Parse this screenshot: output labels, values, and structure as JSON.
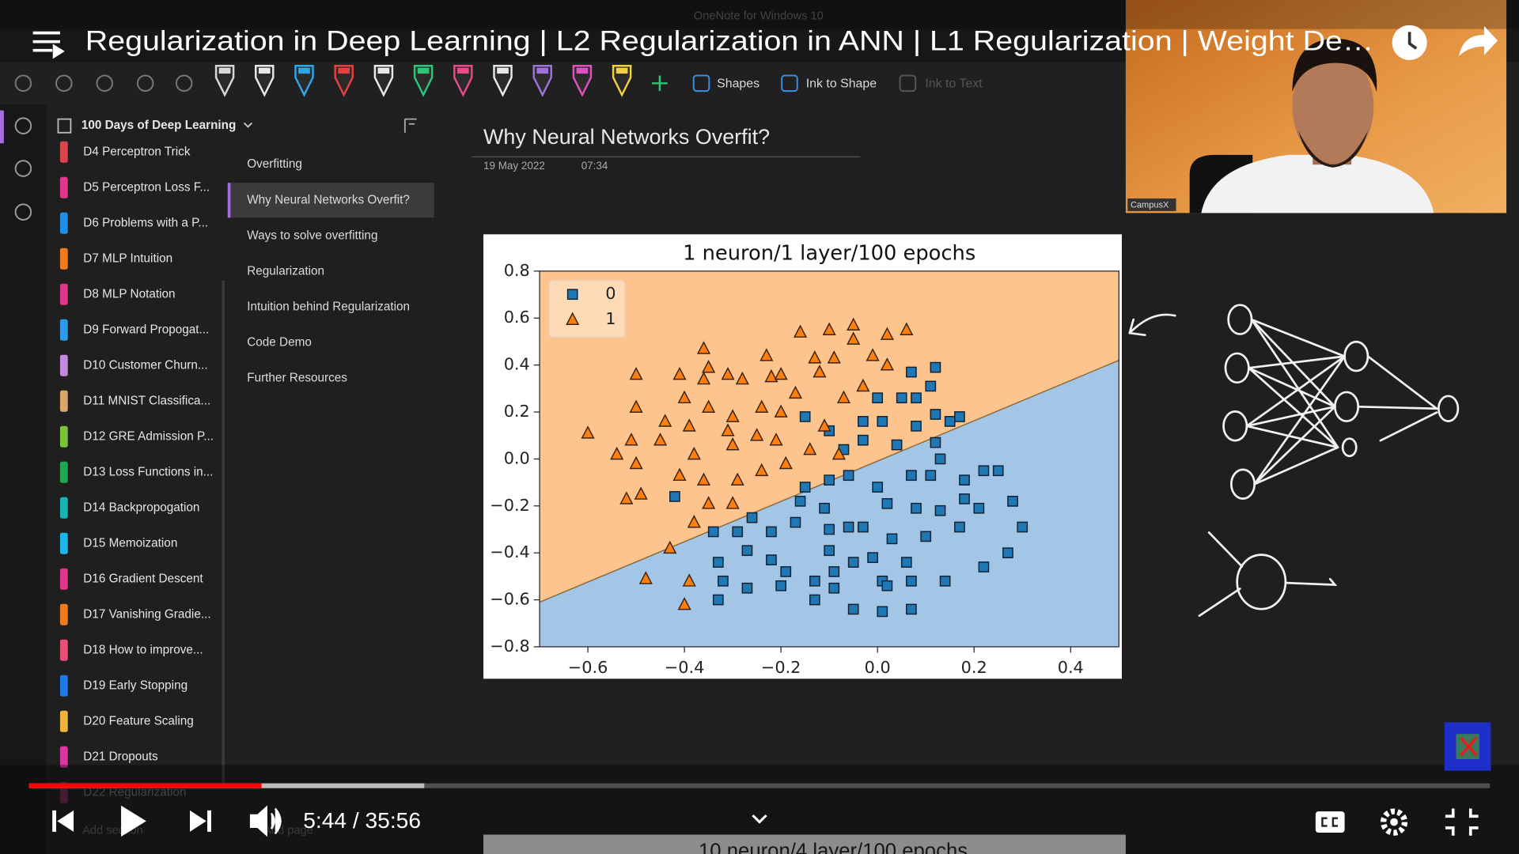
{
  "player": {
    "title": "Regularization in Deep Learning | L2 Regularization in ANN | L1 Regularization | Weight De…",
    "time": "5:44 / 35:56"
  },
  "onenote": {
    "app_title": "OneNote for Windows 10",
    "toolbar": [
      "Shapes",
      "Ink to Shape",
      "Ink to Text"
    ],
    "notebook": "100 Days of Deep Learning",
    "sections": [
      {
        "label": "D4 Perceptron Trick",
        "color": "#d9454a"
      },
      {
        "label": "D5 Perceptron Loss F...",
        "color": "#e0368c"
      },
      {
        "label": "D6 Problems with a P...",
        "color": "#1e8ee6"
      },
      {
        "label": "D7 MLP Intuition",
        "color": "#f07a1e"
      },
      {
        "label": "D8 MLP Notation",
        "color": "#e0368c"
      },
      {
        "label": "D9 Forward Propogat...",
        "color": "#2e9be8"
      },
      {
        "label": "D10 Customer Churn...",
        "color": "#c488e0"
      },
      {
        "label": "D11 MNIST Classifica...",
        "color": "#d9a66b"
      },
      {
        "label": "D12 GRE Admission P...",
        "color": "#7cc23a"
      },
      {
        "label": "D13 Loss Functions in...",
        "color": "#1fa84f"
      },
      {
        "label": "D14 Backpropogation",
        "color": "#18b3b3"
      },
      {
        "label": "D15 Memoization",
        "color": "#1eb6e6"
      },
      {
        "label": "D16 Gradient Descent",
        "color": "#e0368c"
      },
      {
        "label": "D17 Vanishing Gradie...",
        "color": "#f07a1e"
      },
      {
        "label": "D18 How to improve...",
        "color": "#e8507a"
      },
      {
        "label": "D19 Early Stopping",
        "color": "#1e7ae6"
      },
      {
        "label": "D20 Feature Scaling",
        "color": "#f0b43c"
      },
      {
        "label": "D21 Dropouts",
        "color": "#d936a0"
      },
      {
        "label": "D22 Regularization",
        "color": "#e0368c"
      }
    ],
    "pages": [
      "Overfitting",
      "Why Neural Networks Overfit?",
      "Ways to solve overfitting",
      "Regularization",
      "Intuition behind Regularization",
      "Code Demo",
      "Further Resources"
    ],
    "add_section": "Add section",
    "add_page": "Add page",
    "page_title": "Why Neural Networks Overfit?",
    "date": "19 May 2022",
    "time": "07:34",
    "next_chart_title": "10 neuron/4 layer/100 epochs"
  },
  "webcam_label": "CampusX",
  "chart_data": {
    "type": "scatter",
    "title": "1 neuron/1 layer/100 epochs",
    "xlim": [
      -0.7,
      0.5
    ],
    "ylim": [
      -0.8,
      0.8
    ],
    "xticks": [
      {
        "value": -0.6,
        "label": "−0.6"
      },
      {
        "value": -0.4,
        "label": "−0.4"
      },
      {
        "value": -0.2,
        "label": "−0.2"
      },
      {
        "value": 0,
        "label": "0.0"
      },
      0.2,
      0.4
    ],
    "yticks": [
      {
        "value": -0.8,
        "label": "−0.8"
      },
      {
        "value": -0.6,
        "label": "−0.6"
      },
      {
        "value": -0.4,
        "label": "−0.4"
      },
      {
        "value": -0.2,
        "label": "−0.2"
      },
      {
        "value": 0,
        "label": "0.0"
      },
      0.2,
      0.4,
      0.6,
      0.8
    ],
    "boundary": {
      "x": [
        -0.7,
        0.5
      ],
      "y": [
        -0.61,
        0.42
      ]
    },
    "legend": "upper left",
    "series": [
      {
        "name": "0",
        "color": "#1f77b4",
        "region_color": "#a4c6e6",
        "marker": "square",
        "x": [
          -0.42,
          0.07,
          0.12,
          0.11,
          0.08,
          0.0,
          0.05,
          -0.15,
          -0.03,
          0.01,
          0.08,
          0.12,
          0.17,
          0.15,
          -0.1,
          -0.07,
          -0.03,
          0.04,
          0.12,
          0.13,
          0.22,
          0.25,
          0.07,
          0.11,
          0.18,
          -0.1,
          -0.06,
          0.0,
          -0.15,
          -0.16,
          -0.11,
          0.02,
          0.08,
          0.13,
          0.18,
          0.21,
          0.28,
          0.3,
          0.27,
          0.22,
          0.14,
          0.03,
          -0.03,
          -0.06,
          -0.1,
          -0.17,
          -0.22,
          -0.26,
          -0.29,
          -0.34,
          -0.27,
          -0.33,
          -0.32,
          -0.27,
          -0.33,
          -0.22,
          -0.19,
          -0.2,
          -0.13,
          -0.09,
          -0.1,
          -0.05,
          -0.01,
          0.01,
          0.02,
          0.07,
          -0.05,
          0.01,
          0.07,
          -0.13,
          -0.09,
          0.06,
          0.1,
          0.17
        ],
        "y": [
          -0.16,
          0.37,
          0.39,
          0.31,
          0.26,
          0.26,
          0.26,
          0.18,
          0.16,
          0.16,
          0.14,
          0.19,
          0.18,
          0.16,
          0.12,
          0.04,
          0.08,
          0.06,
          0.07,
          0.0,
          -0.05,
          -0.05,
          -0.07,
          -0.07,
          -0.09,
          -0.09,
          -0.07,
          -0.12,
          -0.12,
          -0.18,
          -0.21,
          -0.19,
          -0.21,
          -0.22,
          -0.17,
          -0.21,
          -0.18,
          -0.29,
          -0.4,
          -0.46,
          -0.52,
          -0.34,
          -0.29,
          -0.29,
          -0.3,
          -0.27,
          -0.31,
          -0.25,
          -0.31,
          -0.31,
          -0.39,
          -0.44,
          -0.52,
          -0.55,
          -0.6,
          -0.43,
          -0.48,
          -0.54,
          -0.52,
          -0.48,
          -0.39,
          -0.44,
          -0.42,
          -0.52,
          -0.54,
          -0.52,
          -0.64,
          -0.65,
          -0.64,
          -0.6,
          -0.55,
          -0.44,
          -0.33,
          -0.29
        ]
      },
      {
        "name": "1",
        "color": "#ff7f0e",
        "region_color": "#fdc48e",
        "marker": "triangle",
        "x": [
          -0.6,
          -0.5,
          -0.5,
          -0.54,
          -0.51,
          -0.45,
          -0.5,
          -0.52,
          -0.49,
          -0.41,
          -0.4,
          -0.36,
          -0.35,
          -0.36,
          -0.31,
          -0.28,
          -0.23,
          -0.22,
          -0.2,
          -0.16,
          -0.1,
          -0.05,
          -0.05,
          0.02,
          0.06,
          -0.01,
          0.02,
          -0.13,
          -0.09,
          -0.12,
          -0.07,
          -0.03,
          -0.44,
          -0.39,
          -0.35,
          -0.3,
          -0.24,
          -0.2,
          -0.17,
          -0.25,
          -0.3,
          -0.38,
          -0.41,
          -0.36,
          -0.29,
          -0.24,
          -0.19,
          -0.14,
          -0.08,
          -0.3,
          -0.35,
          -0.38,
          -0.43,
          -0.39,
          -0.4,
          -0.48,
          -0.31,
          -0.21,
          -0.11
        ],
        "y": [
          0.11,
          0.36,
          0.22,
          0.02,
          0.08,
          0.08,
          -0.02,
          -0.17,
          -0.15,
          0.36,
          0.26,
          0.47,
          0.39,
          0.34,
          0.36,
          0.34,
          0.44,
          0.35,
          0.36,
          0.54,
          0.55,
          0.57,
          0.51,
          0.53,
          0.55,
          0.44,
          0.4,
          0.43,
          0.43,
          0.37,
          0.26,
          0.31,
          0.16,
          0.14,
          0.22,
          0.18,
          0.22,
          0.2,
          0.28,
          0.1,
          0.06,
          0.02,
          -0.07,
          -0.09,
          -0.09,
          -0.05,
          -0.02,
          0.04,
          0.02,
          -0.19,
          -0.19,
          -0.27,
          -0.38,
          -0.52,
          -0.62,
          -0.51,
          0.12,
          0.08,
          0.14
        ]
      }
    ]
  }
}
